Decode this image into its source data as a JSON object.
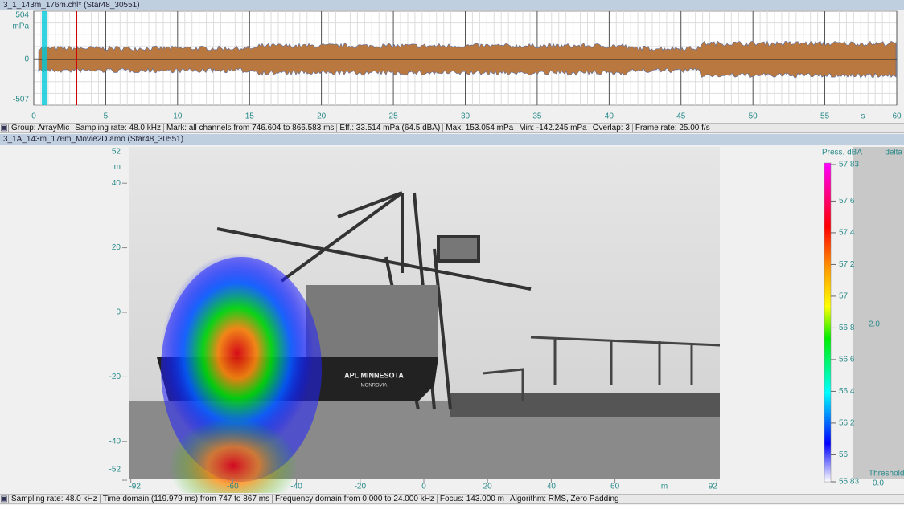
{
  "waveform": {
    "title": "3_1_143m_176m.chl* (Star48_30551)",
    "y_max_label": "504",
    "y_unit": "mPa",
    "y_zero_label": "0",
    "y_min_label": "-507",
    "x_ticks": [
      0,
      5,
      10,
      15,
      20,
      25,
      30,
      35,
      40,
      45,
      50,
      55,
      60
    ],
    "x_unit": "s"
  },
  "status_top": [
    "Group: ArrayMic",
    "Sampling rate: 48.0 kHz",
    "Mark: all channels from 746.604 to 866.583 ms",
    "Eff.: 33.514 mPa (64.5 dBA)",
    "Max: 153.054 mPa",
    "Min: -142.245 mPa",
    "Overlap: 3",
    "Frame rate: 25.00 f/s"
  ],
  "image_panel": {
    "title": "3_1A_143m_176m_Movie2D.amo (Star48_30551)",
    "y_ticks": [
      52,
      40,
      20,
      0,
      -20,
      -40,
      -52
    ],
    "y_unit": "m",
    "x_ticks": [
      -92,
      -60,
      -40,
      -20,
      0,
      20,
      40,
      60,
      92
    ],
    "x_unit": "m",
    "ship_label": "APL MINNESOTA",
    "ship_port": "MONROVIA"
  },
  "colorbar": {
    "title": "Press. dBA",
    "delta_label": "delta",
    "ticks": [
      57.83,
      57.6,
      57.4,
      57.2,
      57.0,
      56.8,
      56.6,
      56.4,
      56.2,
      56.0,
      55.83
    ],
    "delta": "2.0",
    "threshold_label": "Threshold",
    "threshold": "0.0"
  },
  "status_bottom": [
    "Sampling rate: 48.0 kHz",
    "Time domain (119.979 ms) from 747 to 867 ms",
    "Frequency domain from 0.000 to 24.000 kHz",
    "Focus: 143.000 m",
    "Algorithm: RMS, Zero Padding"
  ]
}
